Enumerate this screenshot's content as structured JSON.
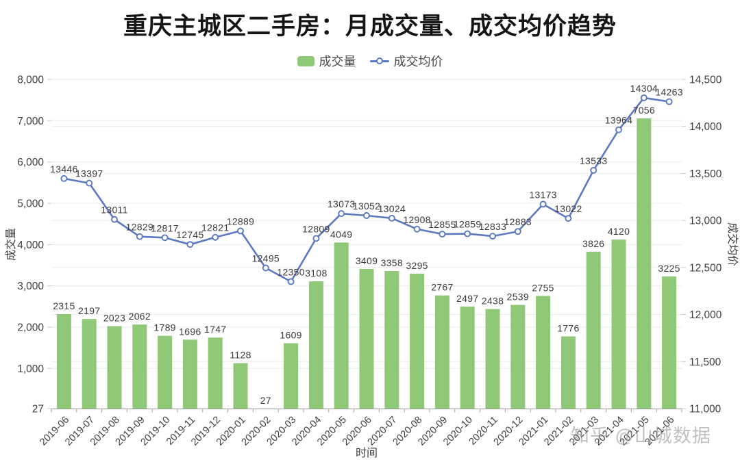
{
  "title": "重庆主城区二手房：月成交量、成交均价趋势",
  "legend": {
    "volume_label": "成交量",
    "price_label": "成交均价",
    "volume_icon": "green-rounded-rect",
    "price_icon": "line-with-hollow-circle"
  },
  "watermark": "知乎 @山城数据",
  "colors": {
    "bar": "#8fc877",
    "line": "#5b79c1",
    "grid": "#ebebeb",
    "axis": "#999999",
    "tick_text": "#3f3f3f",
    "data_label": "#3a3a3a"
  },
  "chart_data": {
    "type": "combo",
    "title": "重庆主城区二手房：月成交量、成交均价趋势",
    "xlabel": "时间",
    "legend_position": "top",
    "grid": true,
    "categories": [
      "2019-06",
      "2019-07",
      "2019-08",
      "2019-09",
      "2019-10",
      "2019-11",
      "2019-12",
      "2020-01",
      "2020-02",
      "2020-03",
      "2020-04",
      "2020-05",
      "2020-06",
      "2020-07",
      "2020-08",
      "2020-09",
      "2020-10",
      "2020-11",
      "2020-12",
      "2021-01",
      "2021-02",
      "2021-03",
      "2021-04",
      "2021-05",
      "2021-06"
    ],
    "series": [
      {
        "name": "成交量",
        "type": "bar",
        "y_axis": "left",
        "color": "#8fc877",
        "values": [
          2315,
          2197,
          2023,
          2062,
          1789,
          1696,
          1747,
          1128,
          27,
          1609,
          3108,
          4049,
          3409,
          3358,
          3295,
          2767,
          2497,
          2438,
          2539,
          2755,
          1776,
          3826,
          4120,
          7056,
          3225
        ]
      },
      {
        "name": "成交均价",
        "type": "line",
        "y_axis": "right",
        "color": "#5b79c1",
        "values": [
          13446,
          13397,
          13011,
          12829,
          12817,
          12745,
          12821,
          12889,
          12495,
          12350,
          12809,
          13073,
          13052,
          13024,
          12908,
          12855,
          12859,
          12833,
          12883,
          13173,
          13022,
          13533,
          13964,
          14304,
          14263
        ]
      }
    ],
    "left_axis": {
      "title": "成交量",
      "min": 27,
      "max": 8000,
      "tick_values": [
        27,
        1000,
        2000,
        3000,
        4000,
        5000,
        6000,
        7000,
        8000
      ],
      "tick_labels": [
        "27",
        "1,000",
        "2,000",
        "3,000",
        "4,000",
        "5,000",
        "6,000",
        "7,000",
        "8,000"
      ]
    },
    "right_axis": {
      "title": "成交均价",
      "min": 11000,
      "max": 14500,
      "tick_values": [
        11000,
        11500,
        12000,
        12500,
        13000,
        13500,
        14000,
        14500
      ],
      "tick_labels": [
        "11,000",
        "11,500",
        "12,000",
        "12,500",
        "13,000",
        "13,500",
        "14,000",
        "14,500"
      ]
    }
  }
}
